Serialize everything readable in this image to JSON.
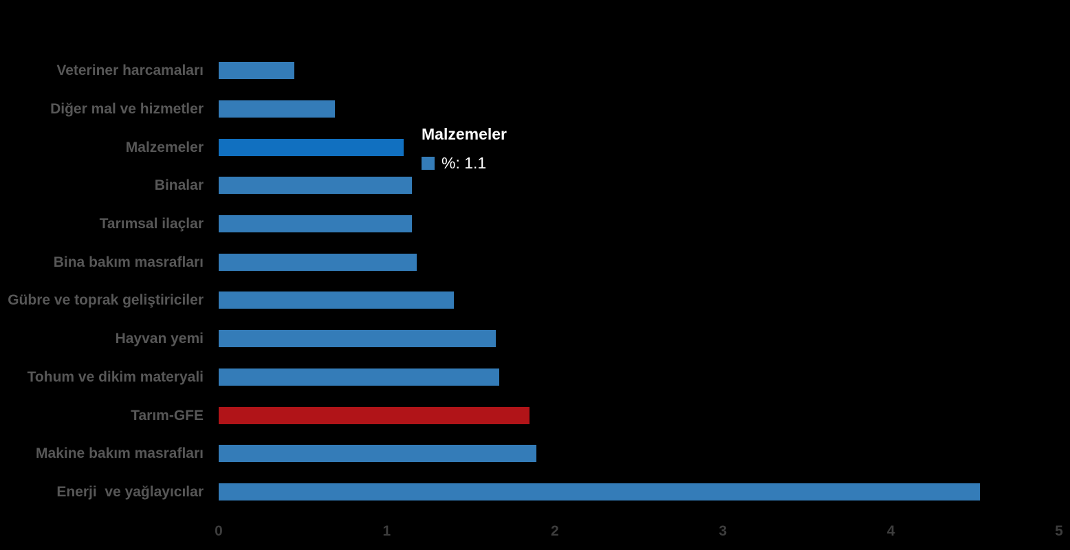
{
  "background_color": "#000000",
  "colors": {
    "bar_default": "#347CB8",
    "bar_highlight": "#1170C0",
    "bar_emphasis": "#B11418",
    "category_label": "#575757",
    "tick_label": "#3D3D3D",
    "tooltip_text": "#FFFFFF",
    "tooltip_swatch": "#347CB8"
  },
  "tooltip": {
    "title": "Malzemeler",
    "value_label": "%: 1.1"
  },
  "chart_data": {
    "type": "bar",
    "orientation": "horizontal",
    "title": "",
    "xlabel": "",
    "ylabel": "",
    "categories": [
      "Veteriner harcamaları",
      "Diğer mal ve hizmetler",
      "Malzemeler",
      "Binalar",
      "Tarımsal ilaçlar",
      "Bina bakım masrafları",
      "Gübre ve toprak geliştiriciler",
      "Hayvan yemi",
      "Tohum ve dikim materyali",
      "Tarım-GFE",
      "Makine bakım masrafları",
      "Enerji  ve yağlayıcılar"
    ],
    "values": [
      0.45,
      0.69,
      1.1,
      1.15,
      1.15,
      1.18,
      1.4,
      1.65,
      1.67,
      1.85,
      1.89,
      4.53
    ],
    "styles": [
      "default",
      "default",
      "highlight",
      "default",
      "default",
      "default",
      "default",
      "default",
      "default",
      "emphasis",
      "default",
      "default"
    ],
    "highlighted_category": "Malzemeler",
    "highlighted_value_percent": 1.1,
    "emphasis_category": "Tarım-GFE",
    "xlim": [
      0,
      5
    ],
    "xticks": [
      "0",
      "1",
      "2",
      "3",
      "4",
      "5"
    ],
    "grid": false,
    "legend_position": "tooltip-at-highlighted-bar"
  }
}
